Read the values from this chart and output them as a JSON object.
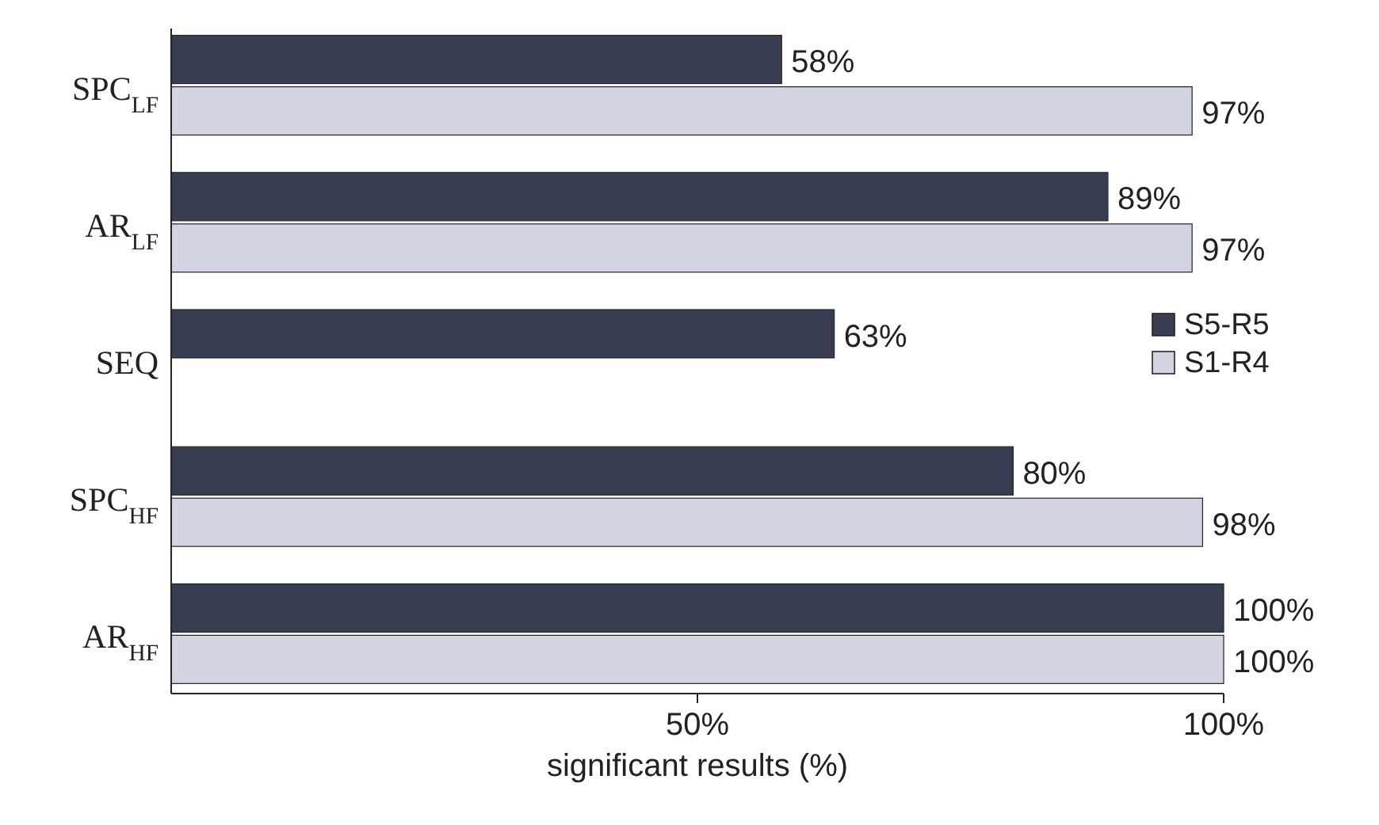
{
  "chart_data": {
    "type": "bar",
    "orientation": "horizontal",
    "categories": [
      "SPC$_{LF}$",
      "AR$_{LF}$",
      "SEQ",
      "SPC$_{HF}$",
      "AR$_{HF}$"
    ],
    "xlabel": "significant results (%)",
    "xlim": [
      0,
      100
    ],
    "xticks": [
      {
        "value": 50,
        "label": "50%"
      },
      {
        "value": 100,
        "label": "100%"
      }
    ],
    "series": [
      {
        "name": "S5-R5",
        "color": "#393d52",
        "values": [
          58,
          89,
          63,
          80,
          100
        ],
        "value_labels": [
          "58%",
          "89%",
          "63%",
          "80%",
          "100%"
        ]
      },
      {
        "name": "S1-R4",
        "color": "#d2d4e2",
        "values": [
          97,
          97,
          null,
          98,
          100
        ],
        "value_labels": [
          "97%",
          "97%",
          null,
          "98%",
          "100%"
        ]
      }
    ],
    "legend": "right",
    "grid": false
  }
}
